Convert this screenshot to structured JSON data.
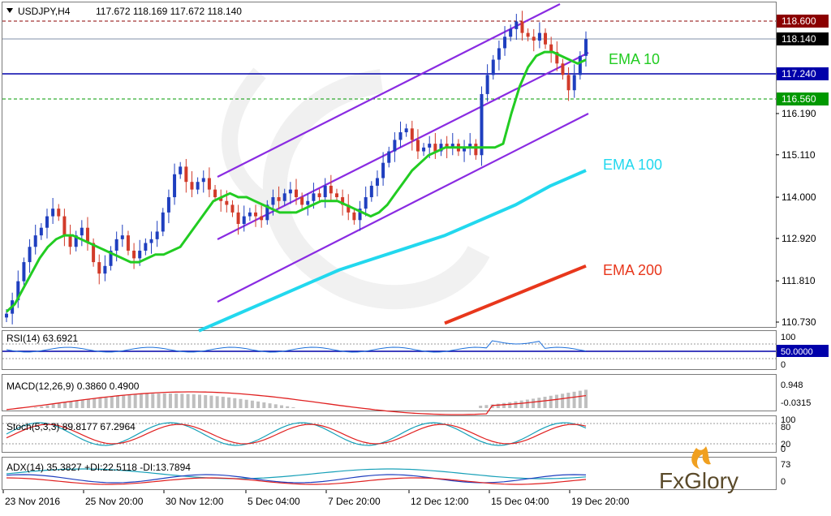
{
  "header": {
    "symbol": "USDJPY,H4",
    "ohlc": "117.672 118.169 117.672 118.140"
  },
  "colors": {
    "bull": "#1f3fbf",
    "bear": "#d23b2a",
    "ema10": "#22cc22",
    "ema100": "#22d8ee",
    "ema200": "#e8371c",
    "channel": "#8a2be2",
    "resistance": "#8b0000",
    "support": "#009900",
    "pivot": "#0000aa"
  },
  "price_levels": {
    "resistance": "118.600",
    "current": "118.140",
    "pivot": "117.240",
    "support": "116.560"
  },
  "ema_labels": {
    "ema10": "EMA 10",
    "ema100": "EMA 100",
    "ema200": "EMA 200"
  },
  "indicators": {
    "rsi": {
      "label": "RSI(14) 63.6921",
      "axis": [
        "100",
        "50.0000",
        "0"
      ],
      "level_label": "50.0000"
    },
    "macd": {
      "label": "MACD(12,26,9) 0.3860 0.4900",
      "axis": [
        "0.948",
        "-0.0315"
      ]
    },
    "stoch": {
      "label": "Stoch(5,3,3) 89.8177 67.2964",
      "axis": [
        "100",
        "80",
        "20",
        "0"
      ]
    },
    "adx": {
      "label": "ADX(14) 35.3827 +DI:22.5118 -DI:13.7894",
      "axis": [
        "73",
        "0"
      ]
    }
  },
  "time_labels": [
    "23 Nov 2016",
    "25 Nov 20:00",
    "30 Nov 12:00",
    "5 Dec 04:00",
    "7 Dec 20:00",
    "12 Dec 12:00",
    "15 Dec 04:00",
    "19 Dec 20:00"
  ],
  "watermark": "FxGlory",
  "chart_data": {
    "type": "candlestick",
    "symbol": "USDJPY",
    "timeframe": "H4",
    "ylim": [
      110.73,
      118.95
    ],
    "y_ticks": [
      "118.600",
      "118.140",
      "117.240",
      "116.560",
      "116.190",
      "115.110",
      "114.000",
      "112.920",
      "111.810",
      "110.730"
    ],
    "x_ticks": [
      "23 Nov 2016",
      "25 Nov 20:00",
      "30 Nov 12:00",
      "5 Dec 04:00",
      "7 Dec 20:00",
      "12 Dec 12:00",
      "15 Dec 04:00",
      "19 Dec 20:00"
    ],
    "close": [
      110.95,
      111.3,
      111.8,
      112.3,
      112.7,
      113.0,
      113.2,
      113.5,
      113.7,
      113.5,
      113.0,
      112.7,
      113.0,
      113.2,
      112.8,
      112.3,
      112.0,
      112.2,
      112.6,
      112.9,
      113.0,
      112.6,
      112.4,
      112.6,
      112.8,
      112.9,
      113.1,
      113.6,
      114.0,
      114.6,
      114.8,
      114.4,
      114.2,
      114.4,
      114.5,
      114.2,
      114.0,
      113.9,
      113.8,
      113.6,
      113.3,
      113.5,
      113.6,
      113.5,
      113.4,
      113.8,
      114.0,
      113.9,
      114.1,
      114.2,
      114.0,
      113.8,
      113.9,
      114.1,
      114.0,
      114.3,
      114.1,
      114.0,
      113.8,
      113.6,
      113.4,
      113.7,
      114.0,
      114.3,
      114.5,
      114.9,
      115.2,
      115.5,
      115.7,
      115.8,
      115.5,
      115.2,
      115.3,
      115.4,
      115.2,
      115.4,
      115.3,
      115.4,
      115.2,
      115.3,
      115.4,
      115.1,
      116.7,
      117.2,
      117.6,
      117.9,
      118.2,
      118.4,
      118.6,
      118.3,
      118.2,
      118.1,
      118.3,
      118.0,
      117.8,
      117.5,
      117.2,
      116.8,
      117.2,
      117.7,
      118.14
    ],
    "ema10": [
      111.0,
      111.2,
      111.6,
      112.0,
      112.4,
      112.7,
      112.9,
      113.0,
      113.0,
      112.9,
      112.8,
      112.7,
      112.6,
      112.5,
      112.4,
      112.3,
      112.3,
      112.4,
      112.5,
      112.5,
      112.6,
      112.7,
      113.0,
      113.3,
      113.6,
      113.9,
      114.0,
      114.1,
      114.0,
      114.0,
      113.9,
      113.8,
      113.7,
      113.6,
      113.6,
      113.6,
      113.7,
      113.8,
      113.9,
      113.9,
      113.9,
      113.8,
      113.7,
      113.6,
      113.5,
      113.6,
      113.8,
      114.1,
      114.4,
      114.7,
      114.9,
      115.1,
      115.2,
      115.3,
      115.3,
      115.3,
      115.3,
      115.3,
      115.3,
      115.3,
      115.4,
      116.2,
      116.9,
      117.4,
      117.7,
      117.8,
      117.8,
      117.7,
      117.6,
      117.5,
      117.6
    ],
    "ema100": [
      110.5,
      110.9,
      111.3,
      111.7,
      112.1,
      112.4,
      112.7,
      113.0,
      113.4,
      113.8,
      114.3,
      114.7
    ],
    "ema200": [
      110.7,
      111.0,
      111.3,
      111.6,
      111.9,
      112.2
    ],
    "channel_upper": [
      114.5,
      119.0
    ],
    "channel_middle": [
      112.9,
      117.6
    ],
    "channel_lower": [
      111.3,
      116.2
    ],
    "levels": {
      "resistance": 118.6,
      "current": 118.14,
      "pivot": 117.24,
      "support": 116.56
    },
    "rsi": 63.6921,
    "macd": [
      0.386,
      0.49
    ],
    "stoch": [
      89.8177,
      67.2964
    ],
    "adx": [
      35.3827,
      22.5118,
      13.7894
    ]
  }
}
